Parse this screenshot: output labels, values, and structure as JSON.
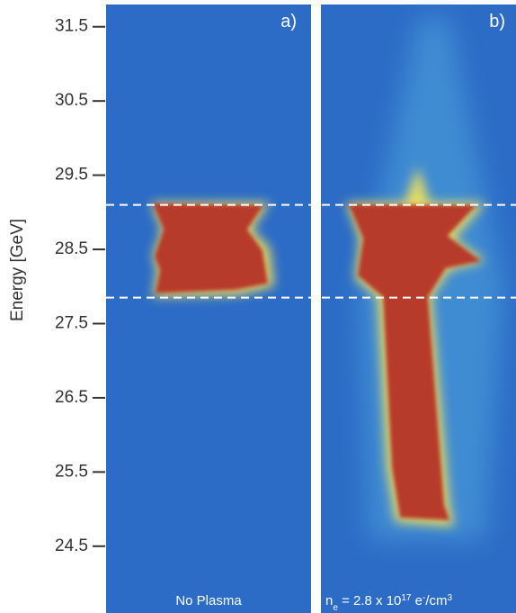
{
  "chart_data": {
    "type": "image-panels",
    "y_label": "Energy [GeV]",
    "ylim": [
      23.6,
      31.8
    ],
    "yticks": [
      31.5,
      30.5,
      29.5,
      28.5,
      27.5,
      26.5,
      25.5,
      24.5
    ],
    "reference_lines": [
      29.1,
      27.85
    ],
    "panels": [
      {
        "label": "a)",
        "caption": [
          {
            "text": "No Plasma"
          }
        ]
      },
      {
        "label": "b)",
        "caption": [
          {
            "text": "n"
          },
          {
            "text": "e",
            "style": "sub"
          },
          {
            "text": " = 2.8 x 10"
          },
          {
            "text": "17",
            "style": "sup"
          },
          {
            "text": " e"
          },
          {
            "text": "-",
            "style": "sup"
          },
          {
            "text": "/cm"
          },
          {
            "text": "3",
            "style": "sup"
          }
        ]
      }
    ]
  }
}
